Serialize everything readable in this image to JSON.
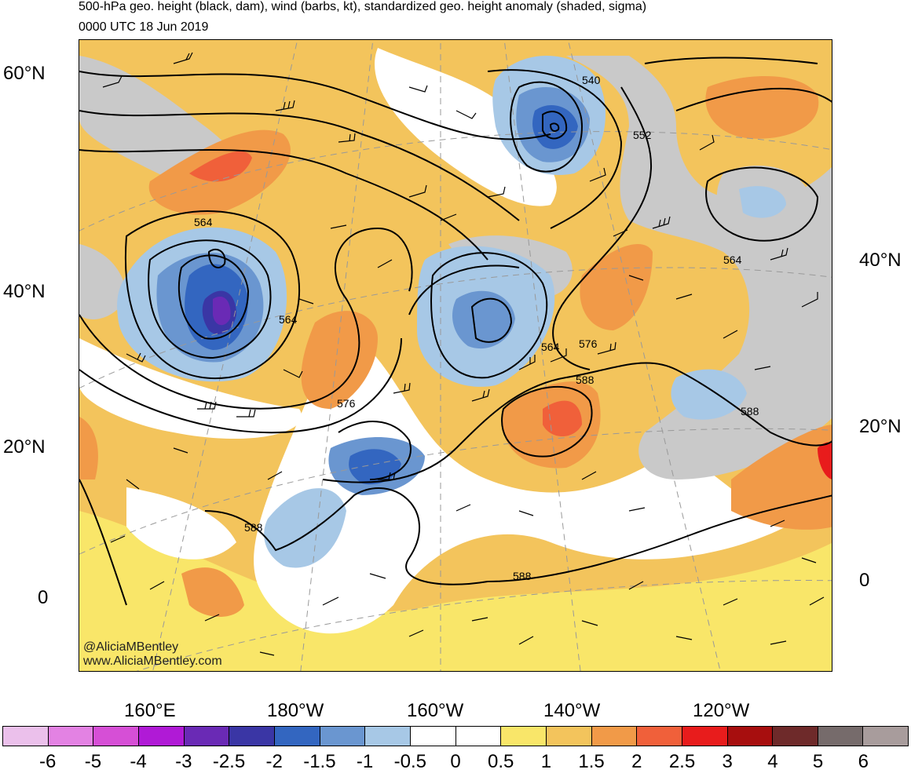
{
  "title": {
    "line1": "500-hPa geo. height (black, dam), wind (barbs, kt), standardized geo. height anomaly (shaded, sigma)",
    "line2": "0000 UTC 18 Jun 2019"
  },
  "map": {
    "lat_labels_left": [
      "60°N",
      "40°N",
      "20°N",
      "0"
    ],
    "lat_labels_right": [
      "40°N",
      "20°N",
      "0"
    ],
    "lon_labels": [
      "160°E",
      "180°W",
      "160°W",
      "140°W",
      "120°W"
    ],
    "contour_labels": [
      "540",
      "552",
      "564",
      "564",
      "564",
      "564",
      "576",
      "576",
      "588",
      "588",
      "588",
      "588"
    ],
    "credit_line1": "@AliciaMBentley",
    "credit_line2": "www.AliciaMBentley.com"
  },
  "colorbar": {
    "colors": [
      "#ebc0eb",
      "#e382e3",
      "#d64fd6",
      "#b01ad6",
      "#6a2ab5",
      "#3a36a5",
      "#3366c0",
      "#6a96d0",
      "#a7c8e6",
      "#ffffff",
      "#ffffff",
      "#f9e669",
      "#f3c45c",
      "#f19a48",
      "#f0603a",
      "#e81c1c",
      "#a70e0e",
      "#6e2a2a",
      "#766b6b",
      "#a89c9c"
    ],
    "labels": [
      "-6",
      "-5",
      "-4",
      "-3",
      "-2.5",
      "-2",
      "-1.5",
      "-1",
      "-0.5",
      "0",
      "0.5",
      "1",
      "1.5",
      "2",
      "2.5",
      "3",
      "4",
      "5",
      "6"
    ]
  }
}
